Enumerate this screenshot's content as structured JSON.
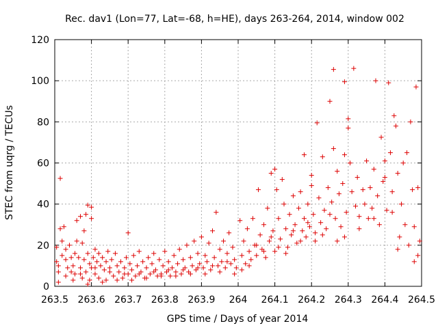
{
  "chart_data": {
    "type": "scatter",
    "title": "Rec. dav1 (Lon=77, Lat=-68, h=HE), days 263-264, 2014, window 002",
    "xlabel": "GPS time / Days of year 2014",
    "ylabel": "STEC from uqrg / TECUs",
    "xlim": [
      263.5,
      264.5
    ],
    "ylim": [
      0,
      120
    ],
    "grid": true,
    "marker": "+",
    "color": "#dd0000",
    "xticks": [
      263.5,
      263.6,
      263.7,
      263.8,
      263.9,
      264.0,
      264.1,
      264.2,
      264.3,
      264.4,
      264.5
    ],
    "xtick_labels": [
      "263.5",
      "263.6",
      "263.7",
      "263.8",
      "263.9",
      "264",
      "264.1",
      "264.2",
      "264.3",
      "264.4",
      "264.5"
    ],
    "yticks": [
      0,
      20,
      40,
      60,
      80,
      100,
      120
    ],
    "ytick_labels": [
      "0",
      "20",
      "40",
      "60",
      "80",
      "100",
      "120"
    ],
    "series": [
      {
        "name": "STEC",
        "points": [
          [
            263.505,
            19
          ],
          [
            263.505,
            12
          ],
          [
            263.51,
            10
          ],
          [
            263.51,
            7
          ],
          [
            263.515,
            52.5
          ],
          [
            263.515,
            28
          ],
          [
            263.52,
            22
          ],
          [
            263.52,
            15
          ],
          [
            263.525,
            29
          ],
          [
            263.53,
            18
          ],
          [
            263.53,
            13
          ],
          [
            263.535,
            9
          ],
          [
            263.54,
            20
          ],
          [
            263.545,
            14
          ],
          [
            263.545,
            7
          ],
          [
            263.55,
            10
          ],
          [
            263.555,
            16
          ],
          [
            263.555,
            6
          ],
          [
            263.56,
            32
          ],
          [
            263.56,
            22
          ],
          [
            263.565,
            14
          ],
          [
            263.57,
            34
          ],
          [
            263.57,
            9
          ],
          [
            263.575,
            21
          ],
          [
            263.575,
            4
          ],
          [
            263.58,
            27
          ],
          [
            263.58,
            13
          ],
          [
            263.585,
            35
          ],
          [
            263.585,
            7
          ],
          [
            263.59,
            39.5
          ],
          [
            263.59,
            16
          ],
          [
            263.595,
            11
          ],
          [
            263.595,
            3
          ],
          [
            263.6,
            38.5
          ],
          [
            263.6,
            33
          ],
          [
            263.6,
            9
          ],
          [
            263.605,
            14
          ],
          [
            263.61,
            18
          ],
          [
            263.61,
            6
          ],
          [
            263.615,
            12
          ],
          [
            263.62,
            16
          ],
          [
            263.62,
            4
          ],
          [
            263.625,
            10
          ],
          [
            263.63,
            14
          ],
          [
            263.635,
            8
          ],
          [
            263.64,
            12
          ],
          [
            263.64,
            3
          ],
          [
            263.645,
            17
          ],
          [
            263.65,
            9
          ],
          [
            263.655,
            13
          ],
          [
            263.66,
            5
          ],
          [
            263.665,
            16
          ],
          [
            263.67,
            10
          ],
          [
            263.675,
            7
          ],
          [
            263.68,
            12
          ],
          [
            263.685,
            4
          ],
          [
            263.69,
            9
          ],
          [
            263.695,
            14
          ],
          [
            263.7,
            6
          ],
          [
            263.7,
            26
          ],
          [
            263.705,
            11
          ],
          [
            263.71,
            8
          ],
          [
            263.715,
            15
          ],
          [
            263.72,
            5
          ],
          [
            263.725,
            10
          ],
          [
            263.73,
            17
          ],
          [
            263.735,
            7
          ],
          [
            263.74,
            12
          ],
          [
            263.745,
            4
          ],
          [
            263.75,
            9
          ],
          [
            263.755,
            14
          ],
          [
            263.76,
            6
          ],
          [
            263.765,
            11
          ],
          [
            263.77,
            16
          ],
          [
            263.775,
            8
          ],
          [
            263.78,
            5
          ],
          [
            263.785,
            13
          ],
          [
            263.79,
            6
          ],
          [
            263.795,
            10
          ],
          [
            263.8,
            17
          ],
          [
            263.805,
            7
          ],
          [
            263.81,
            12
          ],
          [
            263.815,
            5
          ],
          [
            263.82,
            9
          ],
          [
            263.825,
            15
          ],
          [
            263.83,
            7
          ],
          [
            263.835,
            11
          ],
          [
            263.84,
            18
          ],
          [
            263.845,
            6
          ],
          [
            263.85,
            13
          ],
          [
            263.855,
            9
          ],
          [
            263.86,
            20
          ],
          [
            263.865,
            7
          ],
          [
            263.87,
            14
          ],
          [
            263.875,
            10
          ],
          [
            263.88,
            22
          ],
          [
            263.885,
            8
          ],
          [
            263.89,
            16
          ],
          [
            263.895,
            11
          ],
          [
            263.9,
            24
          ],
          [
            263.905,
            9
          ],
          [
            263.91,
            15
          ],
          [
            263.915,
            12
          ],
          [
            263.92,
            21
          ],
          [
            263.925,
            8
          ],
          [
            263.93,
            27
          ],
          [
            263.935,
            14
          ],
          [
            263.94,
            36
          ],
          [
            263.945,
            10
          ],
          [
            263.95,
            18
          ],
          [
            263.955,
            12
          ],
          [
            263.96,
            22
          ],
          [
            263.965,
            9
          ],
          [
            263.97,
            16
          ],
          [
            263.975,
            26
          ],
          [
            263.98,
            11
          ],
          [
            263.985,
            19
          ],
          [
            263.99,
            13
          ],
          [
            263.995,
            9
          ],
          [
            264.005,
            32
          ],
          [
            264.01,
            15
          ],
          [
            264.015,
            22
          ],
          [
            264.02,
            11
          ],
          [
            264.025,
            28
          ],
          [
            264.03,
            17
          ],
          [
            264.035,
            13
          ],
          [
            264.04,
            33
          ],
          [
            264.045,
            20
          ],
          [
            264.05,
            15
          ],
          [
            264.055,
            47
          ],
          [
            264.06,
            25
          ],
          [
            264.065,
            18
          ],
          [
            264.07,
            30
          ],
          [
            264.075,
            14
          ],
          [
            264.08,
            38
          ],
          [
            264.085,
            22
          ],
          [
            264.09,
            55
          ],
          [
            264.095,
            27
          ],
          [
            264.1,
            57
          ],
          [
            264.1,
            17
          ],
          [
            264.105,
            47
          ],
          [
            264.11,
            33
          ],
          [
            264.115,
            23
          ],
          [
            264.12,
            52
          ],
          [
            264.125,
            40
          ],
          [
            264.13,
            28
          ],
          [
            264.135,
            19
          ],
          [
            264.14,
            35
          ],
          [
            264.145,
            25
          ],
          [
            264.15,
            44
          ],
          [
            264.155,
            30
          ],
          [
            264.16,
            21
          ],
          [
            264.165,
            38
          ],
          [
            264.17,
            46
          ],
          [
            264.175,
            27
          ],
          [
            264.18,
            64
          ],
          [
            264.18,
            33
          ],
          [
            264.185,
            24
          ],
          [
            264.19,
            40
          ],
          [
            264.195,
            29
          ],
          [
            264.2,
            49
          ],
          [
            264.2,
            54
          ],
          [
            264.205,
            35
          ],
          [
            264.21,
            26
          ],
          [
            264.215,
            79.5
          ],
          [
            264.22,
            43
          ],
          [
            264.225,
            31
          ],
          [
            264.23,
            63
          ],
          [
            264.235,
            37
          ],
          [
            264.24,
            28
          ],
          [
            264.245,
            48
          ],
          [
            264.25,
            90
          ],
          [
            264.255,
            41
          ],
          [
            264.26,
            105.5
          ],
          [
            264.26,
            67
          ],
          [
            264.265,
            33
          ],
          [
            264.27,
            56
          ],
          [
            264.275,
            45
          ],
          [
            264.28,
            29
          ],
          [
            264.285,
            50
          ],
          [
            264.29,
            99.5
          ],
          [
            264.29,
            64
          ],
          [
            264.295,
            36
          ],
          [
            264.3,
            77
          ],
          [
            264.3,
            81.5
          ],
          [
            264.305,
            60
          ],
          [
            264.31,
            46
          ],
          [
            264.315,
            106
          ],
          [
            264.32,
            39
          ],
          [
            264.325,
            53
          ],
          [
            264.33,
            34
          ],
          [
            264.34,
            47
          ],
          [
            264.345,
            40
          ],
          [
            264.35,
            61
          ],
          [
            264.355,
            33
          ],
          [
            264.36,
            48
          ],
          [
            264.365,
            38
          ],
          [
            264.37,
            57
          ],
          [
            264.375,
            100
          ],
          [
            264.38,
            44
          ],
          [
            264.385,
            30
          ],
          [
            264.39,
            72.5
          ],
          [
            264.395,
            51
          ],
          [
            264.4,
            61
          ],
          [
            264.4,
            53
          ],
          [
            264.405,
            37
          ],
          [
            264.41,
            99
          ],
          [
            264.415,
            65
          ],
          [
            264.42,
            46
          ],
          [
            264.425,
            83
          ],
          [
            264.43,
            78
          ],
          [
            264.435,
            55
          ],
          [
            264.44,
            24
          ],
          [
            264.445,
            40
          ],
          [
            264.45,
            60
          ],
          [
            264.455,
            30
          ],
          [
            264.46,
            65
          ],
          [
            264.465,
            20
          ],
          [
            264.47,
            80
          ],
          [
            264.475,
            47
          ],
          [
            264.48,
            29
          ],
          [
            264.485,
            97
          ],
          [
            264.49,
            48
          ],
          [
            264.495,
            22
          ],
          [
            264.49,
            15
          ],
          [
            264.48,
            12
          ],
          [
            264.435,
            18
          ],
          [
            264.42,
            36
          ],
          [
            264.37,
            33
          ],
          [
            264.33,
            28
          ],
          [
            264.29,
            24
          ],
          [
            264.27,
            22
          ],
          [
            264.25,
            35
          ],
          [
            264.23,
            25
          ],
          [
            264.21,
            22
          ],
          [
            264.19,
            31
          ],
          [
            264.17,
            22
          ],
          [
            264.15,
            27
          ],
          [
            264.13,
            16
          ],
          [
            264.11,
            19
          ],
          [
            264.09,
            24
          ],
          [
            264.07,
            17
          ],
          [
            264.05,
            20
          ],
          [
            264.03,
            10
          ],
          [
            264.01,
            8
          ],
          [
            263.99,
            6
          ],
          [
            263.97,
            12
          ],
          [
            263.95,
            7
          ],
          [
            263.93,
            10
          ],
          [
            263.91,
            6
          ],
          [
            263.89,
            9
          ],
          [
            263.87,
            6
          ],
          [
            263.85,
            8
          ],
          [
            263.83,
            5
          ],
          [
            263.81,
            8
          ],
          [
            263.79,
            5
          ],
          [
            263.77,
            7
          ],
          [
            263.75,
            4
          ],
          [
            263.73,
            6
          ],
          [
            263.71,
            3
          ],
          [
            263.69,
            6
          ],
          [
            263.67,
            3
          ],
          [
            263.65,
            7
          ],
          [
            263.63,
            2
          ],
          [
            263.61,
            9
          ],
          [
            263.59,
            1
          ],
          [
            263.57,
            6
          ],
          [
            263.55,
            3
          ],
          [
            263.53,
            5
          ],
          [
            263.51,
            2
          ]
        ]
      }
    ]
  }
}
